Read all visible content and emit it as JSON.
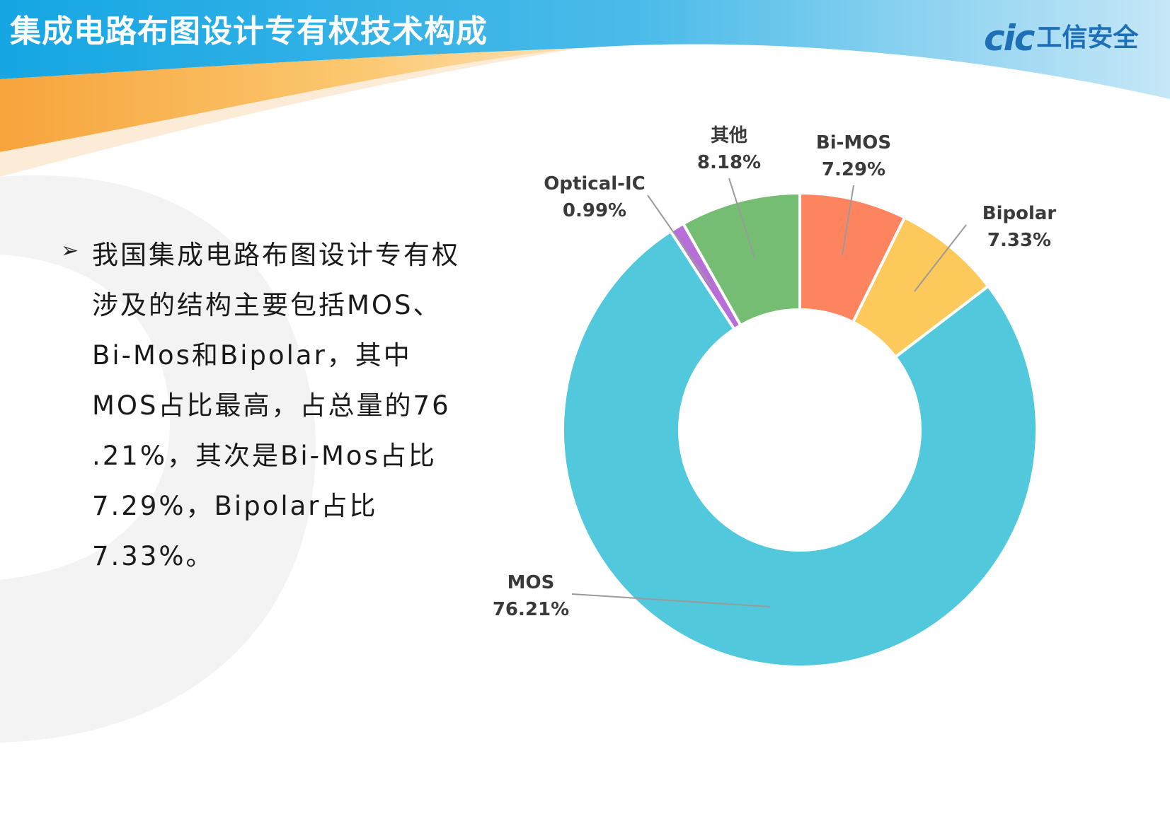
{
  "header": {
    "title": "集成电路布图设计专有权技术构成",
    "logo_mark": "cic",
    "logo_text": "工信安全"
  },
  "body": {
    "bullet_text": "我国集成电路布图设计专有权涉及的结构主要包括MOS、Bi-Mos和Bipolar，其中MOS占比最高，占总量的76 .21%，其次是Bi-Mos占比7.29%，Bipolar占比7.33%。"
  },
  "chart_data": {
    "type": "pie",
    "donut": true,
    "title": "",
    "slices": [
      {
        "name": "Bi-MOS",
        "value": 7.29,
        "label": "7.29%",
        "color": "#fe8460"
      },
      {
        "name": "Bipolar",
        "value": 7.33,
        "label": "7.33%",
        "color": "#fec95b"
      },
      {
        "name": "MOS",
        "value": 76.21,
        "label": "76.21%",
        "color": "#52c8dc"
      },
      {
        "name": "Optical-IC",
        "value": 0.99,
        "label": "0.99%",
        "color": "#b76ed8"
      },
      {
        "name": "其他",
        "value": 8.18,
        "label": "8.18%",
        "color": "#75bd73"
      }
    ]
  }
}
